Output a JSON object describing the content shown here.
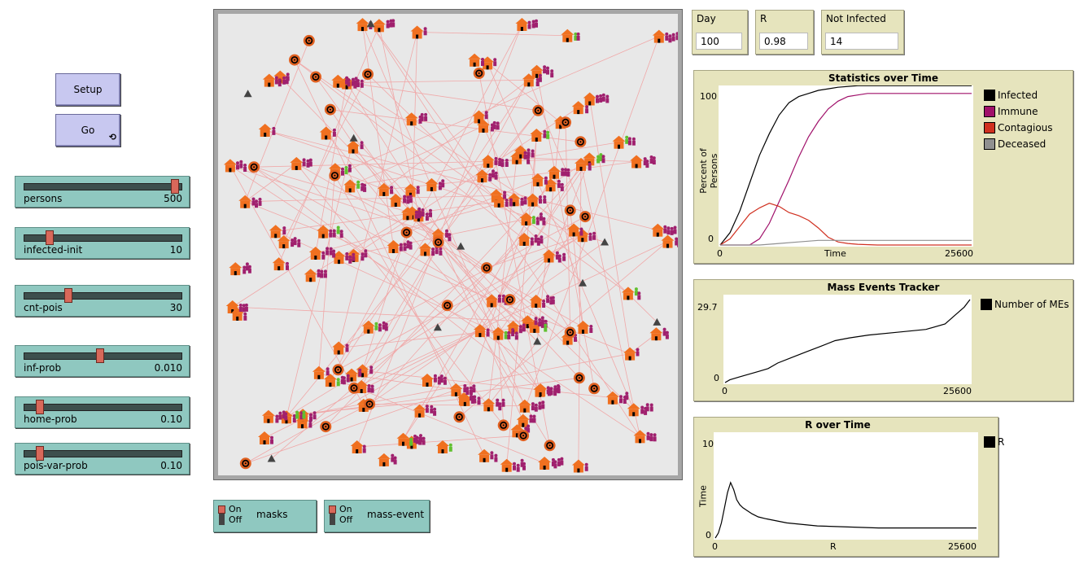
{
  "buttons": {
    "setup_label": "Setup",
    "go_label": "Go",
    "go_forever_glyph": "⟲"
  },
  "sliders": [
    {
      "label": "persons",
      "value": "500",
      "fraction": 1.0
    },
    {
      "label": "infected-init",
      "value": "10",
      "fraction": 0.17
    },
    {
      "label": "cnt-pois",
      "value": "30",
      "fraction": 0.29
    },
    {
      "label": "inf-prob",
      "value": "0.010",
      "fraction": 0.5
    },
    {
      "label": "home-prob",
      "value": "0.10",
      "fraction": 0.1
    },
    {
      "label": "pois-var-prob",
      "value": "0.10",
      "fraction": 0.1
    }
  ],
  "monitors": [
    {
      "label": "Day",
      "value": "100"
    },
    {
      "label": "R",
      "value": "0.98"
    },
    {
      "label": "Not Infected",
      "value": "14"
    }
  ],
  "switches": [
    {
      "on": "On",
      "off": "Off",
      "label": "masks"
    },
    {
      "on": "On",
      "off": "Off",
      "label": "mass-event"
    }
  ],
  "colors": {
    "infected": "#000000",
    "immune": "#a0106a",
    "contagious": "#d03020",
    "deceased": "#909090",
    "house": "#f07020",
    "person": "#a0206e",
    "person_green": "#60c030",
    "poi": "#e06020",
    "link": "#f0a8a8"
  },
  "chart_data": [
    {
      "type": "line",
      "title": "Statistics over Time",
      "xlabel": "Time",
      "ylabel": "Percent of Persons",
      "xlim": [
        0,
        25600
      ],
      "ylim": [
        0,
        100
      ],
      "x_ticks": [
        "0",
        "25600"
      ],
      "y_ticks": [
        "0",
        "100"
      ],
      "legend_position": "right",
      "series": [
        {
          "name": "Infected",
          "color": "#000000",
          "x": [
            0,
            1000,
            2000,
            3000,
            4000,
            5000,
            6000,
            7000,
            8000,
            9000,
            10000,
            11000,
            12000,
            14000,
            25600
          ],
          "y": [
            0,
            8,
            22,
            40,
            58,
            72,
            84,
            92,
            96,
            98,
            100,
            101,
            102,
            103,
            103
          ]
        },
        {
          "name": "Immune",
          "color": "#a0106a",
          "x": [
            0,
            3000,
            4000,
            5000,
            6000,
            7000,
            8000,
            9000,
            10000,
            11000,
            12000,
            13000,
            14000,
            15000,
            16000,
            25600
          ],
          "y": [
            0,
            0,
            4,
            14,
            28,
            42,
            57,
            70,
            80,
            88,
            93,
            96,
            97,
            98,
            98,
            98
          ]
        },
        {
          "name": "Contagious",
          "color": "#d03020",
          "x": [
            0,
            1000,
            2000,
            3000,
            4000,
            5000,
            6000,
            7000,
            8000,
            9000,
            10000,
            11000,
            12000,
            13000,
            14000,
            16000,
            25600
          ],
          "y": [
            0,
            4,
            12,
            20,
            24,
            27,
            25,
            21,
            19,
            16,
            11,
            5,
            2,
            1,
            0.5,
            0,
            0
          ]
        },
        {
          "name": "Deceased",
          "color": "#909090",
          "x": [
            0,
            4000,
            6000,
            8000,
            10000,
            12000,
            25600
          ],
          "y": [
            0,
            0,
            1,
            2,
            3,
            3,
            3
          ]
        }
      ]
    },
    {
      "type": "line",
      "title": "Mass Events Tracker",
      "xlabel": "",
      "ylabel": "",
      "xlim": [
        0,
        25600
      ],
      "ylim": [
        0,
        29.7
      ],
      "x_ticks": [
        "0",
        "25600"
      ],
      "y_ticks": [
        "0",
        "29.7"
      ],
      "legend_position": "right",
      "series": [
        {
          "name": "Number of MEs",
          "color": "#000000",
          "x": [
            0,
            500,
            1500,
            2500,
            3500,
            4500,
            5500,
            7000,
            8500,
            10000,
            11500,
            13000,
            15000,
            18000,
            21000,
            23000,
            24000,
            25000,
            25600
          ],
          "y": [
            0,
            1,
            2,
            3,
            4,
            5,
            7,
            9,
            11,
            13,
            15,
            16,
            17,
            18,
            19,
            21,
            24,
            27,
            29.7
          ]
        }
      ]
    },
    {
      "type": "line",
      "title": "R over Time",
      "xlabel": "R",
      "ylabel": "Time",
      "xlim": [
        0,
        25600
      ],
      "ylim": [
        0,
        10
      ],
      "x_ticks": [
        "0",
        "25600"
      ],
      "y_ticks": [
        "0",
        "10"
      ],
      "legend_position": "right",
      "series": [
        {
          "name": "R",
          "color": "#000000",
          "x": [
            0,
            300,
            600,
            900,
            1200,
            1500,
            1800,
            2100,
            2400,
            2700,
            3000,
            3600,
            4200,
            5000,
            6000,
            7000,
            8000,
            10000,
            13000,
            16000,
            20000,
            25600
          ],
          "y": [
            0,
            0.5,
            1.5,
            3,
            4.5,
            5.5,
            4.8,
            3.8,
            3.3,
            3.0,
            2.8,
            2.4,
            2.1,
            1.9,
            1.7,
            1.5,
            1.4,
            1.2,
            1.1,
            1.0,
            1.0,
            1.0
          ]
        }
      ]
    }
  ]
}
